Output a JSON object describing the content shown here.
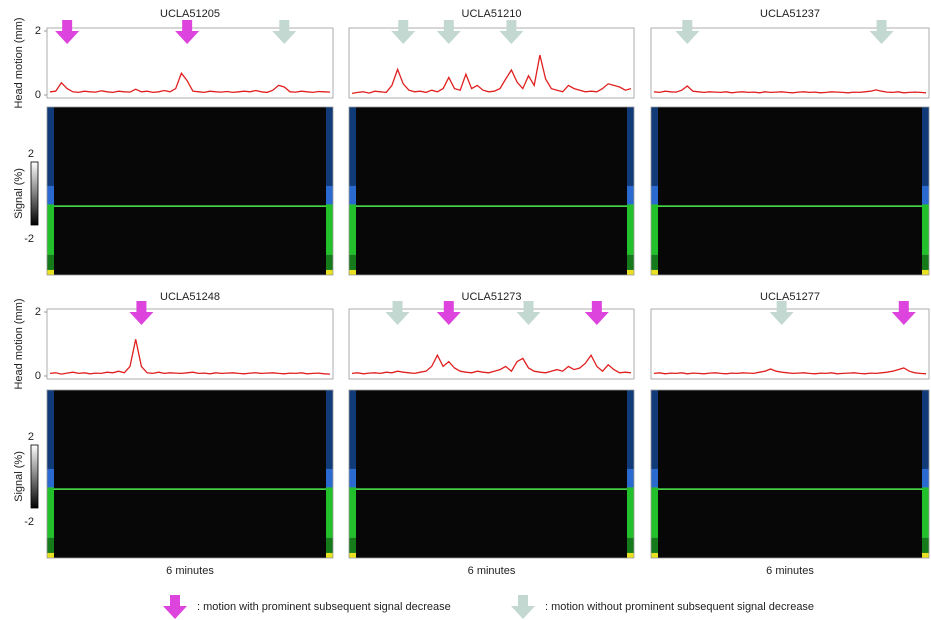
{
  "chart_data": [
    {
      "type": "line",
      "title": "UCLA51205",
      "ylabel": "Head motion (mm)",
      "ylim": [
        0,
        2
      ],
      "yticks": [
        0,
        2
      ],
      "color": "#e02020",
      "values": [
        0.1,
        0.12,
        0.38,
        0.2,
        0.1,
        0.08,
        0.12,
        0.1,
        0.09,
        0.13,
        0.1,
        0.08,
        0.12,
        0.1,
        0.09,
        0.18,
        0.1,
        0.12,
        0.08,
        0.1,
        0.14,
        0.1,
        0.2,
        0.68,
        0.45,
        0.12,
        0.1,
        0.08,
        0.12,
        0.1,
        0.09,
        0.11,
        0.08,
        0.1,
        0.12,
        0.1,
        0.14,
        0.1,
        0.08,
        0.15,
        0.3,
        0.25,
        0.1,
        0.09,
        0.12,
        0.1,
        0.08,
        0.11,
        0.1,
        0.09
      ],
      "arrows": [
        {
          "index": 3,
          "color": "#dd44dd"
        },
        {
          "index": 24,
          "color": "#dd44dd"
        },
        {
          "index": 41,
          "color": "#c4d8d2"
        }
      ],
      "colorbar": {
        "label": "Signal (%)",
        "ticks": [
          2,
          -2
        ]
      }
    },
    {
      "type": "line",
      "title": "UCLA51210",
      "ylim": [
        0,
        2
      ],
      "color": "#e02020",
      "values": [
        0.05,
        0.08,
        0.1,
        0.06,
        0.12,
        0.1,
        0.08,
        0.3,
        0.8,
        0.35,
        0.15,
        0.1,
        0.12,
        0.08,
        0.15,
        0.1,
        0.2,
        0.55,
        0.2,
        0.15,
        0.65,
        0.2,
        0.3,
        0.15,
        0.1,
        0.12,
        0.2,
        0.5,
        0.78,
        0.4,
        0.2,
        0.6,
        0.3,
        1.25,
        0.5,
        0.2,
        0.15,
        0.1,
        0.3,
        0.2,
        0.15,
        0.1,
        0.12,
        0.1,
        0.2,
        0.35,
        0.3,
        0.25,
        0.15,
        0.2
      ],
      "arrows": [
        {
          "index": 9,
          "color": "#c4d8d2"
        },
        {
          "index": 17,
          "color": "#c4d8d2"
        },
        {
          "index": 28,
          "color": "#c4d8d2"
        }
      ]
    },
    {
      "type": "line",
      "title": "UCLA51237",
      "ylim": [
        0,
        2
      ],
      "color": "#e02020",
      "values": [
        0.1,
        0.08,
        0.12,
        0.1,
        0.09,
        0.15,
        0.28,
        0.12,
        0.1,
        0.08,
        0.1,
        0.09,
        0.08,
        0.1,
        0.07,
        0.09,
        0.1,
        0.08,
        0.09,
        0.07,
        0.1,
        0.08,
        0.09,
        0.1,
        0.08,
        0.07,
        0.09,
        0.1,
        0.08,
        0.09,
        0.07,
        0.08,
        0.1,
        0.09,
        0.08,
        0.07,
        0.09,
        0.08,
        0.1,
        0.12,
        0.16,
        0.12,
        0.09,
        0.08,
        0.1,
        0.07,
        0.08,
        0.09,
        0.08,
        0.07
      ],
      "arrows": [
        {
          "index": 6,
          "color": "#c4d8d2"
        },
        {
          "index": 41,
          "color": "#c4d8d2"
        }
      ]
    },
    {
      "type": "line",
      "title": "UCLA51248",
      "ylabel": "Head motion (mm)",
      "ylim": [
        0,
        2
      ],
      "yticks": [
        0,
        2
      ],
      "color": "#e02020",
      "xlabel": "6 minutes",
      "values": [
        0.08,
        0.1,
        0.06,
        0.09,
        0.12,
        0.08,
        0.1,
        0.07,
        0.09,
        0.08,
        0.12,
        0.1,
        0.15,
        0.1,
        0.3,
        1.15,
        0.3,
        0.1,
        0.08,
        0.12,
        0.08,
        0.1,
        0.09,
        0.08,
        0.1,
        0.12,
        0.08,
        0.09,
        0.07,
        0.1,
        0.08,
        0.09,
        0.1,
        0.08,
        0.07,
        0.09,
        0.1,
        0.08,
        0.09,
        0.1,
        0.08,
        0.07,
        0.09,
        0.08,
        0.1,
        0.07,
        0.08,
        0.09,
        0.07,
        0.06
      ],
      "arrows": [
        {
          "index": 16,
          "color": "#dd44dd"
        }
      ],
      "colorbar": {
        "label": "Signal (%)",
        "ticks": [
          2,
          -2
        ]
      }
    },
    {
      "type": "line",
      "title": "UCLA51273",
      "ylim": [
        0,
        2
      ],
      "color": "#e02020",
      "xlabel": "6 minutes",
      "values": [
        0.08,
        0.1,
        0.07,
        0.09,
        0.1,
        0.08,
        0.12,
        0.1,
        0.15,
        0.12,
        0.1,
        0.08,
        0.12,
        0.15,
        0.3,
        0.65,
        0.3,
        0.45,
        0.25,
        0.15,
        0.12,
        0.1,
        0.15,
        0.12,
        0.1,
        0.15,
        0.2,
        0.3,
        0.15,
        0.45,
        0.55,
        0.25,
        0.15,
        0.12,
        0.1,
        0.15,
        0.2,
        0.15,
        0.3,
        0.2,
        0.25,
        0.4,
        0.65,
        0.3,
        0.15,
        0.35,
        0.2,
        0.1,
        0.12,
        0.1
      ],
      "arrows": [
        {
          "index": 8,
          "color": "#c4d8d2"
        },
        {
          "index": 17,
          "color": "#dd44dd"
        },
        {
          "index": 31,
          "color": "#c4d8d2"
        },
        {
          "index": 43,
          "color": "#dd44dd"
        }
      ]
    },
    {
      "type": "line",
      "title": "UCLA51277",
      "ylim": [
        0,
        2
      ],
      "color": "#e02020",
      "xlabel": "6 minutes",
      "values": [
        0.08,
        0.1,
        0.07,
        0.09,
        0.08,
        0.1,
        0.07,
        0.09,
        0.08,
        0.07,
        0.09,
        0.1,
        0.08,
        0.07,
        0.09,
        0.08,
        0.1,
        0.09,
        0.08,
        0.12,
        0.15,
        0.22,
        0.15,
        0.12,
        0.1,
        0.08,
        0.09,
        0.1,
        0.08,
        0.07,
        0.09,
        0.08,
        0.1,
        0.07,
        0.08,
        0.09,
        0.1,
        0.08,
        0.07,
        0.09,
        0.08,
        0.1,
        0.12,
        0.15,
        0.2,
        0.25,
        0.15,
        0.1,
        0.08,
        0.07
      ],
      "arrows": [
        {
          "index": 23,
          "color": "#c4d8d2"
        },
        {
          "index": 45,
          "color": "#dd44dd"
        }
      ]
    }
  ],
  "legend": [
    {
      "color": "#dd44dd",
      "text": ": motion with prominent subsequent signal decrease"
    },
    {
      "color": "#c4d8d2",
      "text": ": motion without prominent subsequent signal decrease"
    }
  ]
}
